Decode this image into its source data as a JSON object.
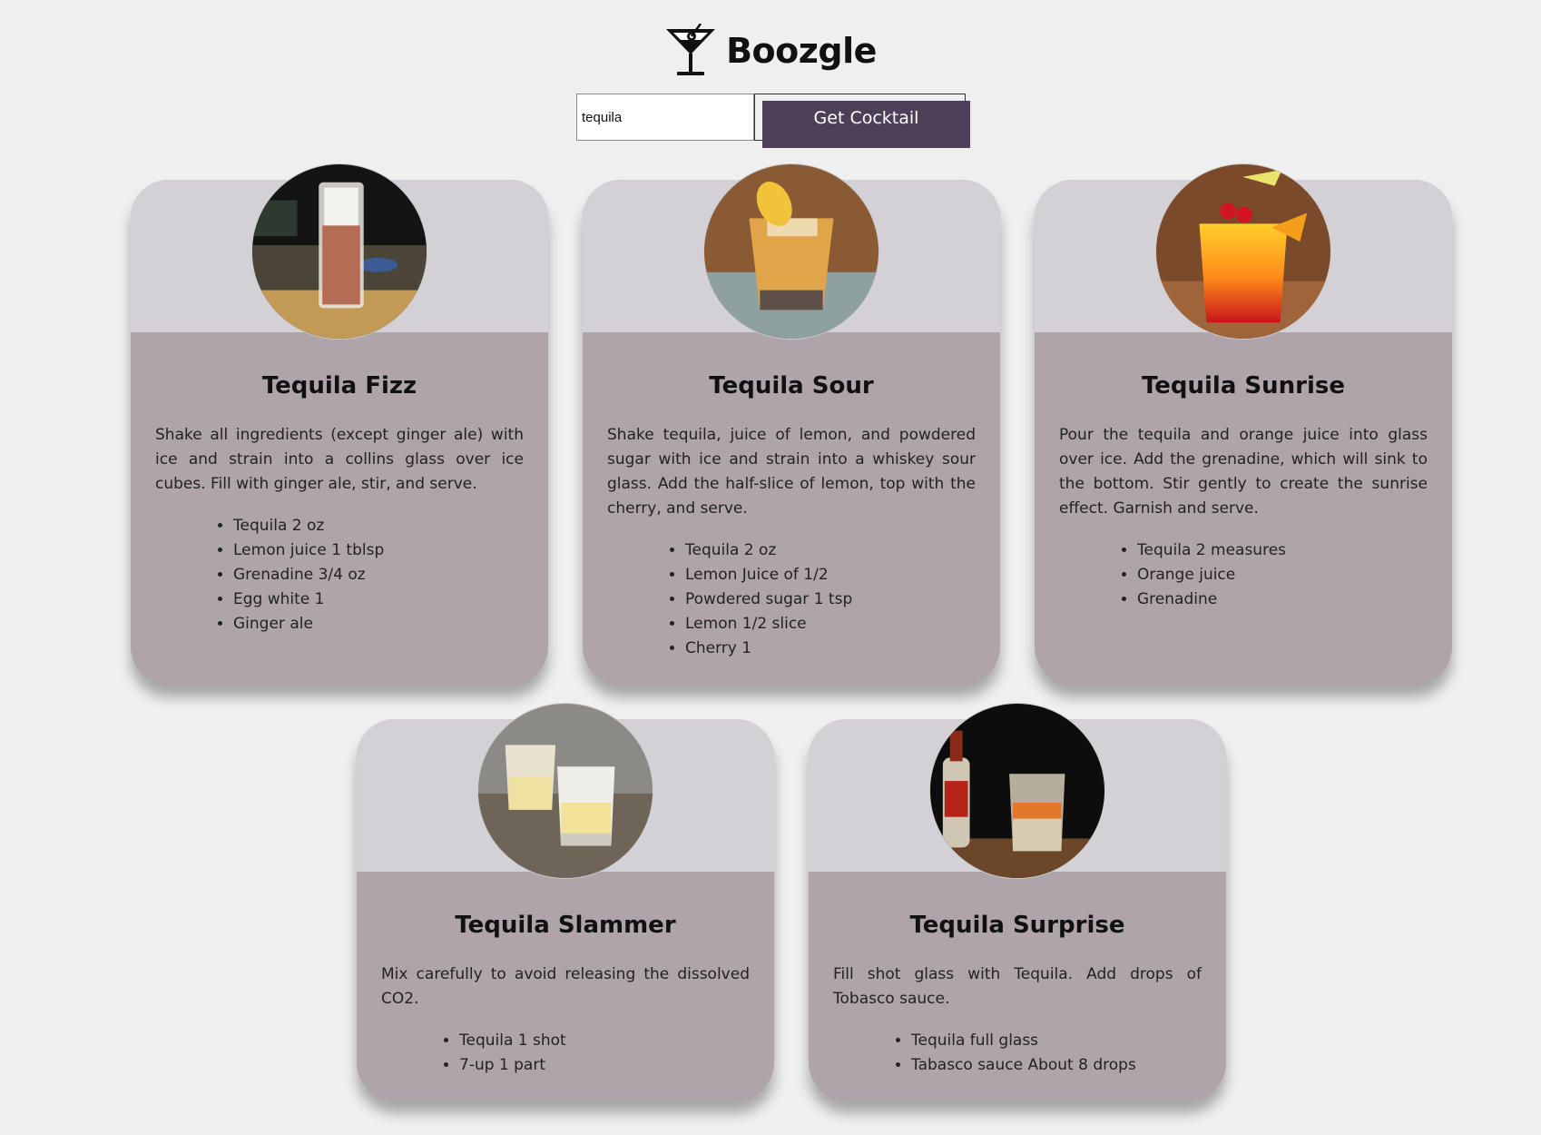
{
  "app": {
    "brand": "Boozgle",
    "logo_icon": "martini-glass-icon"
  },
  "search": {
    "value": "tequila",
    "button_label": "Get Cocktail"
  },
  "colors": {
    "button": "#4e3f58",
    "card_body": "#b0a4ab",
    "card_header": "#d3d0d6",
    "page_bg": "#efefef"
  },
  "cocktails": [
    {
      "name": "Tequila Fizz",
      "photo": "tall-highball-pink-drink-photo",
      "instructions": "Shake all ingredients (except ginger ale) with ice and strain into a collins glass over ice cubes. Fill with ginger ale, stir, and serve.",
      "ingredients": [
        "Tequila 2 oz",
        "Lemon juice 1 tblsp",
        "Grenadine 3/4 oz",
        "Egg white 1",
        "Ginger ale"
      ]
    },
    {
      "name": "Tequila Sour",
      "photo": "amber-whiskey-sour-glass-photo",
      "instructions": "Shake tequila, juice of lemon, and powdered sugar with ice and strain into a whiskey sour glass. Add the half-slice of lemon, top with the cherry, and serve.",
      "ingredients": [
        "Tequila 2 oz",
        "Lemon Juice of 1/2",
        "Powdered sugar 1 tsp",
        "Lemon 1/2 slice",
        "Cherry 1"
      ]
    },
    {
      "name": "Tequila Sunrise",
      "photo": "orange-red-sunrise-glass-photo",
      "instructions": "Pour the tequila and orange juice into glass over ice. Add the grenadine, which will sink to the bottom. Stir gently to create the sunrise effect. Garnish and serve.",
      "ingredients": [
        "Tequila 2 measures",
        "Orange juice",
        "Grenadine"
      ]
    },
    {
      "name": "Tequila Slammer",
      "photo": "two-frothy-shot-glasses-photo",
      "instructions": "Mix carefully to avoid releasing the dissolved CO2.",
      "ingredients": [
        "Tequila 1 shot",
        "7-up 1 part"
      ]
    },
    {
      "name": "Tequila Surprise",
      "photo": "shot-glass-with-tabasco-photo",
      "instructions": "Fill shot glass with Tequila. Add drops of Tobasco sauce.",
      "ingredients": [
        "Tequila full glass",
        "Tabasco sauce About 8 drops"
      ]
    }
  ]
}
